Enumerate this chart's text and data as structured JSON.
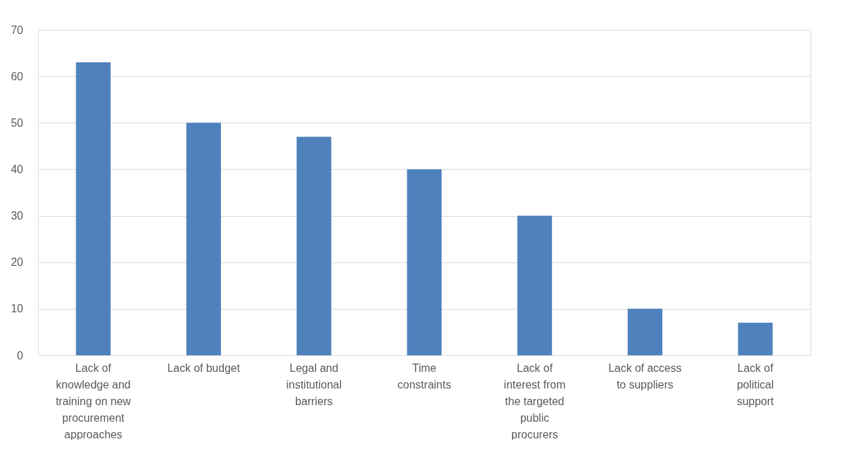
{
  "chart_data": {
    "type": "bar",
    "categories": [
      "Lack of knowledge and training on new procurement approaches",
      "Lack of budget",
      "Legal and institutional barriers",
      "Time constraints",
      "Lack of interest from the targeted public procurers",
      "Lack of access to suppliers",
      "Lack of political support"
    ],
    "values": [
      63,
      50,
      47,
      40,
      30,
      10,
      7
    ],
    "color": "#4f81bd",
    "ylim": [
      0,
      70
    ],
    "yticks": [
      0,
      10,
      20,
      30,
      40,
      50,
      60,
      70
    ],
    "grid": "y"
  }
}
